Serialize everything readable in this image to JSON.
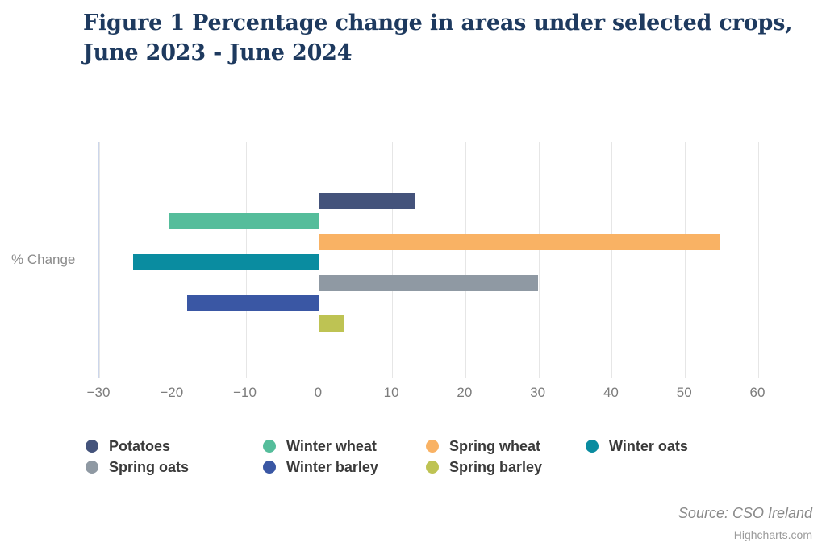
{
  "header": {
    "title_line1": "Figure 1 Percentage change in areas under selected crops,",
    "title_line2": "June 2023 - June 2024"
  },
  "chart_data": {
    "type": "bar",
    "orientation": "horizontal",
    "title": "Figure 1 Percentage change in areas under selected crops, June 2023 - June 2024",
    "ylabel": "% Change",
    "xlim": [
      -30,
      60
    ],
    "x_ticks": [
      -30,
      -20,
      -10,
      0,
      10,
      20,
      30,
      40,
      50,
      60
    ],
    "grid": true,
    "legend_position": "bottom",
    "series": [
      {
        "name": "Potatoes",
        "value": 13.2,
        "color": "#44537B"
      },
      {
        "name": "Winter wheat",
        "value": -20.4,
        "color": "#55BD9B"
      },
      {
        "name": "Spring wheat",
        "value": 54.8,
        "color": "#F9B264"
      },
      {
        "name": "Winter oats",
        "value": -25.4,
        "color": "#0A8CA0"
      },
      {
        "name": "Spring oats",
        "value": 29.9,
        "color": "#8F99A3"
      },
      {
        "name": "Winter barley",
        "value": -18.0,
        "color": "#3A57A4"
      },
      {
        "name": "Spring barley",
        "value": 3.5,
        "color": "#BEC353"
      }
    ]
  },
  "footer": {
    "source": "Source: CSO Ireland",
    "credits": "Highcharts.com"
  }
}
